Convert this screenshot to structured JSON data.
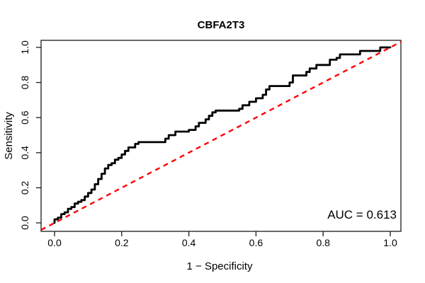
{
  "chart_data": {
    "type": "line",
    "subtype": "roc-step-curve",
    "title": "CBFA2T3",
    "xlabel": "1 − Specificity",
    "ylabel": "Sensitivity",
    "xlim": [
      0.0,
      1.0
    ],
    "ylim": [
      0.0,
      1.0
    ],
    "grid": false,
    "legend_position": "none",
    "x_ticks": [
      0.0,
      0.2,
      0.4,
      0.6,
      0.8,
      1.0
    ],
    "y_ticks": [
      0.0,
      0.2,
      0.4,
      0.6,
      0.8,
      1.0
    ],
    "x_tick_labels": [
      "0.0",
      "0.2",
      "0.4",
      "0.6",
      "0.8",
      "1.0"
    ],
    "y_tick_labels": [
      "0.0",
      "0.2",
      "0.4",
      "0.6",
      "0.8",
      "1.0"
    ],
    "auc": 0.613,
    "annotations": [
      {
        "text": "AUC = 0.613",
        "position": "bottom-right"
      }
    ],
    "series": [
      {
        "name": "ROC curve",
        "color": "#000000",
        "style": "solid",
        "line_width": 2.8,
        "points": [
          [
            0,
            0
          ],
          [
            0,
            0.02
          ],
          [
            0.01,
            0.02
          ],
          [
            0.01,
            0.03
          ],
          [
            0.02,
            0.03
          ],
          [
            0.02,
            0.05
          ],
          [
            0.03,
            0.05
          ],
          [
            0.03,
            0.06
          ],
          [
            0.04,
            0.06
          ],
          [
            0.04,
            0.08
          ],
          [
            0.05,
            0.08
          ],
          [
            0.05,
            0.09
          ],
          [
            0.06,
            0.09
          ],
          [
            0.06,
            0.11
          ],
          [
            0.07,
            0.11
          ],
          [
            0.07,
            0.12
          ],
          [
            0.08,
            0.12
          ],
          [
            0.08,
            0.13
          ],
          [
            0.09,
            0.13
          ],
          [
            0.09,
            0.15
          ],
          [
            0.1,
            0.15
          ],
          [
            0.1,
            0.17
          ],
          [
            0.11,
            0.17
          ],
          [
            0.11,
            0.19
          ],
          [
            0.12,
            0.19
          ],
          [
            0.12,
            0.22
          ],
          [
            0.13,
            0.22
          ],
          [
            0.13,
            0.25
          ],
          [
            0.14,
            0.25
          ],
          [
            0.14,
            0.28
          ],
          [
            0.15,
            0.28
          ],
          [
            0.15,
            0.31
          ],
          [
            0.16,
            0.31
          ],
          [
            0.16,
            0.33
          ],
          [
            0.17,
            0.33
          ],
          [
            0.17,
            0.34
          ],
          [
            0.18,
            0.34
          ],
          [
            0.18,
            0.36
          ],
          [
            0.19,
            0.36
          ],
          [
            0.19,
            0.37
          ],
          [
            0.2,
            0.37
          ],
          [
            0.2,
            0.39
          ],
          [
            0.21,
            0.39
          ],
          [
            0.21,
            0.41
          ],
          [
            0.22,
            0.41
          ],
          [
            0.22,
            0.43
          ],
          [
            0.24,
            0.43
          ],
          [
            0.24,
            0.45
          ],
          [
            0.25,
            0.45
          ],
          [
            0.25,
            0.46
          ],
          [
            0.33,
            0.46
          ],
          [
            0.33,
            0.48
          ],
          [
            0.34,
            0.48
          ],
          [
            0.34,
            0.5
          ],
          [
            0.36,
            0.5
          ],
          [
            0.36,
            0.52
          ],
          [
            0.4,
            0.52
          ],
          [
            0.4,
            0.53
          ],
          [
            0.42,
            0.53
          ],
          [
            0.42,
            0.55
          ],
          [
            0.43,
            0.55
          ],
          [
            0.43,
            0.57
          ],
          [
            0.45,
            0.57
          ],
          [
            0.45,
            0.59
          ],
          [
            0.46,
            0.59
          ],
          [
            0.46,
            0.61
          ],
          [
            0.47,
            0.61
          ],
          [
            0.47,
            0.63
          ],
          [
            0.48,
            0.63
          ],
          [
            0.48,
            0.64
          ],
          [
            0.55,
            0.64
          ],
          [
            0.55,
            0.65
          ],
          [
            0.56,
            0.65
          ],
          [
            0.56,
            0.67
          ],
          [
            0.58,
            0.67
          ],
          [
            0.58,
            0.69
          ],
          [
            0.6,
            0.69
          ],
          [
            0.6,
            0.71
          ],
          [
            0.62,
            0.71
          ],
          [
            0.62,
            0.73
          ],
          [
            0.63,
            0.73
          ],
          [
            0.63,
            0.76
          ],
          [
            0.64,
            0.76
          ],
          [
            0.64,
            0.78
          ],
          [
            0.7,
            0.78
          ],
          [
            0.7,
            0.8
          ],
          [
            0.71,
            0.8
          ],
          [
            0.71,
            0.84
          ],
          [
            0.75,
            0.84
          ],
          [
            0.75,
            0.86
          ],
          [
            0.76,
            0.86
          ],
          [
            0.76,
            0.88
          ],
          [
            0.78,
            0.88
          ],
          [
            0.78,
            0.9
          ],
          [
            0.82,
            0.9
          ],
          [
            0.82,
            0.93
          ],
          [
            0.84,
            0.93
          ],
          [
            0.84,
            0.94
          ],
          [
            0.85,
            0.94
          ],
          [
            0.85,
            0.96
          ],
          [
            0.91,
            0.96
          ],
          [
            0.91,
            0.98
          ],
          [
            0.97,
            0.98
          ],
          [
            0.97,
            1
          ],
          [
            1,
            1
          ]
        ]
      },
      {
        "name": "chance diagonal",
        "color": "#ff0000",
        "style": "dashed",
        "line_width": 2.4,
        "points": [
          [
            0,
            0
          ],
          [
            1,
            1
          ]
        ]
      }
    ]
  },
  "colors": {
    "background": "#ffffff",
    "axis": "#1a1a1a",
    "curve": "#000000",
    "diagonal": "#ff0000",
    "text": "#000000"
  }
}
